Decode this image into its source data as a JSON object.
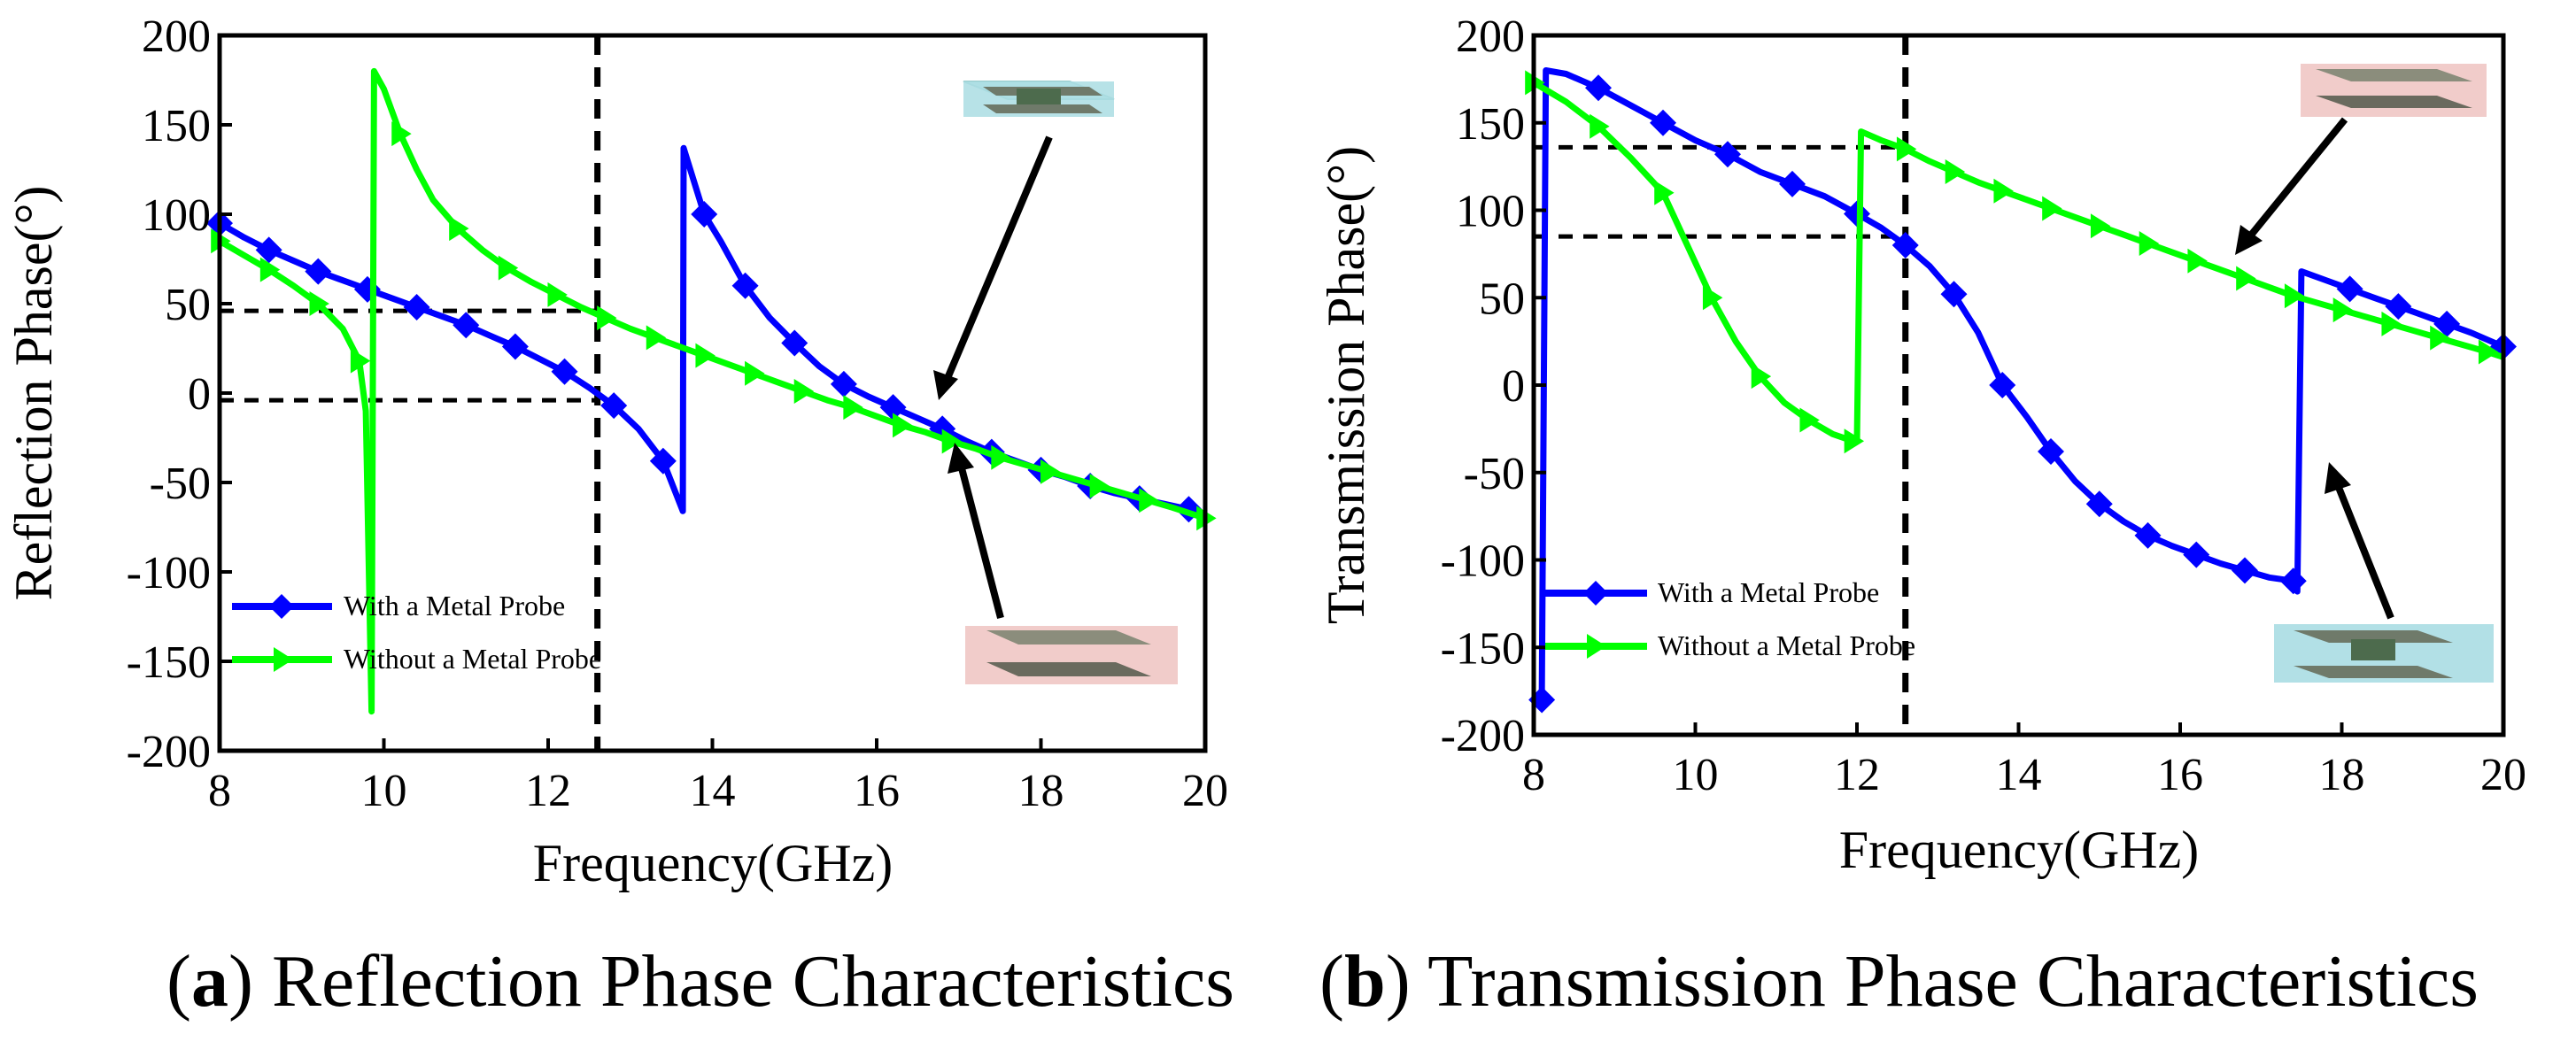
{
  "panels": [
    {
      "caption_label": "a",
      "caption_text": "Reflection Phase Characteristics"
    },
    {
      "caption_label": "b",
      "caption_text": "Transmission Phase Characteristics"
    }
  ],
  "chart_data": [
    {
      "type": "line",
      "title": "",
      "xlabel": "Frequency(GHz)",
      "ylabel": "Reflection Phase(°)",
      "xlim": [
        8,
        20
      ],
      "ylim": [
        -200,
        200
      ],
      "x_ticks": [
        8,
        10,
        12,
        14,
        16,
        18,
        20
      ],
      "y_ticks": [
        200,
        150,
        100,
        50,
        0,
        -50,
        -100,
        -150,
        -200
      ],
      "grid": false,
      "legend_position": "bottom-left",
      "reference_lines": {
        "vertical_x": [
          12.6
        ],
        "horizontal_y": [
          46,
          -4
        ]
      },
      "series": [
        {
          "name": "With a Metal Probe",
          "color": "#0000ff",
          "marker": "diamond",
          "points": [
            [
              8.0,
              95
            ],
            [
              8.3,
              87
            ],
            [
              8.6,
              80
            ],
            [
              8.9,
              74
            ],
            [
              9.2,
              68
            ],
            [
              9.5,
              63
            ],
            [
              9.8,
              58
            ],
            [
              10.1,
              53
            ],
            [
              10.4,
              48
            ],
            [
              10.7,
              43
            ],
            [
              11.0,
              38
            ],
            [
              11.3,
              32
            ],
            [
              11.6,
              26
            ],
            [
              11.9,
              19
            ],
            [
              12.2,
              12
            ],
            [
              12.5,
              3
            ],
            [
              12.8,
              -7
            ],
            [
              13.1,
              -20
            ],
            [
              13.4,
              -38
            ],
            [
              13.64,
              -66
            ],
            [
              13.65,
              137
            ],
            [
              13.9,
              100
            ],
            [
              14.1,
              85
            ],
            [
              14.4,
              60
            ],
            [
              14.7,
              42
            ],
            [
              15.0,
              28
            ],
            [
              15.3,
              15
            ],
            [
              15.6,
              5
            ],
            [
              15.9,
              -2
            ],
            [
              16.2,
              -8
            ],
            [
              16.5,
              -14
            ],
            [
              16.8,
              -20
            ],
            [
              17.1,
              -27
            ],
            [
              17.4,
              -33
            ],
            [
              17.7,
              -38
            ],
            [
              18.0,
              -43
            ],
            [
              18.3,
              -47
            ],
            [
              18.6,
              -52
            ],
            [
              18.9,
              -56
            ],
            [
              19.2,
              -59
            ],
            [
              19.5,
              -62
            ],
            [
              19.8,
              -65
            ],
            [
              20.0,
              -68
            ]
          ]
        },
        {
          "name": "Without a Metal Probe",
          "color": "#00ff00",
          "marker": "triangle-right",
          "points": [
            [
              8.0,
              85
            ],
            [
              8.3,
              77
            ],
            [
              8.6,
              69
            ],
            [
              8.9,
              60
            ],
            [
              9.2,
              50
            ],
            [
              9.5,
              36
            ],
            [
              9.7,
              18
            ],
            [
              9.78,
              -10
            ],
            [
              9.85,
              -178
            ],
            [
              9.88,
              180
            ],
            [
              10.0,
              170
            ],
            [
              10.2,
              145
            ],
            [
              10.4,
              125
            ],
            [
              10.6,
              108
            ],
            [
              10.9,
              92
            ],
            [
              11.2,
              80
            ],
            [
              11.5,
              70
            ],
            [
              11.8,
              62
            ],
            [
              12.1,
              55
            ],
            [
              12.4,
              48
            ],
            [
              12.7,
              42
            ],
            [
              13.0,
              36
            ],
            [
              13.3,
              31
            ],
            [
              13.6,
              26
            ],
            [
              13.9,
              21
            ],
            [
              14.2,
              16
            ],
            [
              14.5,
              11
            ],
            [
              14.8,
              6
            ],
            [
              15.1,
              1
            ],
            [
              15.4,
              -4
            ],
            [
              15.7,
              -8
            ],
            [
              16.0,
              -13
            ],
            [
              16.3,
              -18
            ],
            [
              16.6,
              -22
            ],
            [
              16.9,
              -27
            ],
            [
              17.2,
              -31
            ],
            [
              17.5,
              -36
            ],
            [
              17.8,
              -40
            ],
            [
              18.1,
              -44
            ],
            [
              18.4,
              -48
            ],
            [
              18.7,
              -52
            ],
            [
              19.0,
              -56
            ],
            [
              19.3,
              -60
            ],
            [
              19.6,
              -64
            ],
            [
              20.0,
              -70
            ]
          ]
        }
      ]
    },
    {
      "type": "line",
      "title": "",
      "xlabel": "Frequency(GHz)",
      "ylabel": "Transmission Phase(°)",
      "xlim": [
        8,
        20
      ],
      "ylim": [
        -200,
        200
      ],
      "x_ticks": [
        8,
        10,
        12,
        14,
        16,
        18,
        20
      ],
      "y_ticks": [
        200,
        150,
        100,
        50,
        0,
        -50,
        -100,
        -150,
        -200
      ],
      "grid": false,
      "legend_position": "bottom-left",
      "reference_lines": {
        "vertical_x": [
          12.6
        ],
        "horizontal_y": [
          136,
          85
        ]
      },
      "series": [
        {
          "name": "With a Metal Probe",
          "color": "#0000ff",
          "marker": "diamond",
          "points": [
            [
              8.1,
              -180
            ],
            [
              8.15,
              180
            ],
            [
              8.4,
              178
            ],
            [
              8.8,
              170
            ],
            [
              9.2,
              160
            ],
            [
              9.6,
              150
            ],
            [
              10.0,
              140
            ],
            [
              10.4,
              132
            ],
            [
              10.8,
              122
            ],
            [
              11.2,
              115
            ],
            [
              11.6,
              108
            ],
            [
              12.0,
              98
            ],
            [
              12.3,
              90
            ],
            [
              12.6,
              80
            ],
            [
              12.9,
              68
            ],
            [
              13.2,
              52
            ],
            [
              13.5,
              30
            ],
            [
              13.8,
              0
            ],
            [
              14.1,
              -18
            ],
            [
              14.4,
              -38
            ],
            [
              14.7,
              -55
            ],
            [
              15.0,
              -68
            ],
            [
              15.3,
              -78
            ],
            [
              15.6,
              -86
            ],
            [
              15.9,
              -92
            ],
            [
              16.2,
              -97
            ],
            [
              16.5,
              -102
            ],
            [
              16.8,
              -106
            ],
            [
              17.1,
              -110
            ],
            [
              17.4,
              -112
            ],
            [
              17.45,
              -118
            ],
            [
              17.5,
              65
            ],
            [
              17.8,
              60
            ],
            [
              18.1,
              55
            ],
            [
              18.4,
              50
            ],
            [
              18.7,
              45
            ],
            [
              19.0,
              40
            ],
            [
              19.3,
              35
            ],
            [
              19.6,
              30
            ],
            [
              20.0,
              22
            ]
          ]
        },
        {
          "name": "Without a Metal Probe",
          "color": "#00ff00",
          "marker": "triangle-right",
          "points": [
            [
              8.0,
              173
            ],
            [
              8.4,
              162
            ],
            [
              8.8,
              148
            ],
            [
              9.2,
              130
            ],
            [
              9.6,
              110
            ],
            [
              9.9,
              80
            ],
            [
              10.2,
              50
            ],
            [
              10.5,
              25
            ],
            [
              10.8,
              5
            ],
            [
              11.1,
              -10
            ],
            [
              11.4,
              -20
            ],
            [
              11.7,
              -28
            ],
            [
              11.95,
              -32
            ],
            [
              12.0,
              -32
            ],
            [
              12.05,
              145
            ],
            [
              12.3,
              140
            ],
            [
              12.6,
              135
            ],
            [
              12.9,
              128
            ],
            [
              13.2,
              122
            ],
            [
              13.5,
              116
            ],
            [
              13.8,
              111
            ],
            [
              14.1,
              106
            ],
            [
              14.4,
              101
            ],
            [
              14.7,
              96
            ],
            [
              15.0,
              91
            ],
            [
              15.3,
              86
            ],
            [
              15.6,
              81
            ],
            [
              15.9,
              76
            ],
            [
              16.2,
              71
            ],
            [
              16.5,
              66
            ],
            [
              16.8,
              61
            ],
            [
              17.1,
              56
            ],
            [
              17.4,
              51
            ],
            [
              17.7,
              47
            ],
            [
              18.0,
              43
            ],
            [
              18.3,
              39
            ],
            [
              18.6,
              35
            ],
            [
              18.9,
              31
            ],
            [
              19.2,
              27
            ],
            [
              19.5,
              23
            ],
            [
              19.8,
              19
            ],
            [
              20.0,
              16
            ]
          ]
        }
      ]
    }
  ]
}
